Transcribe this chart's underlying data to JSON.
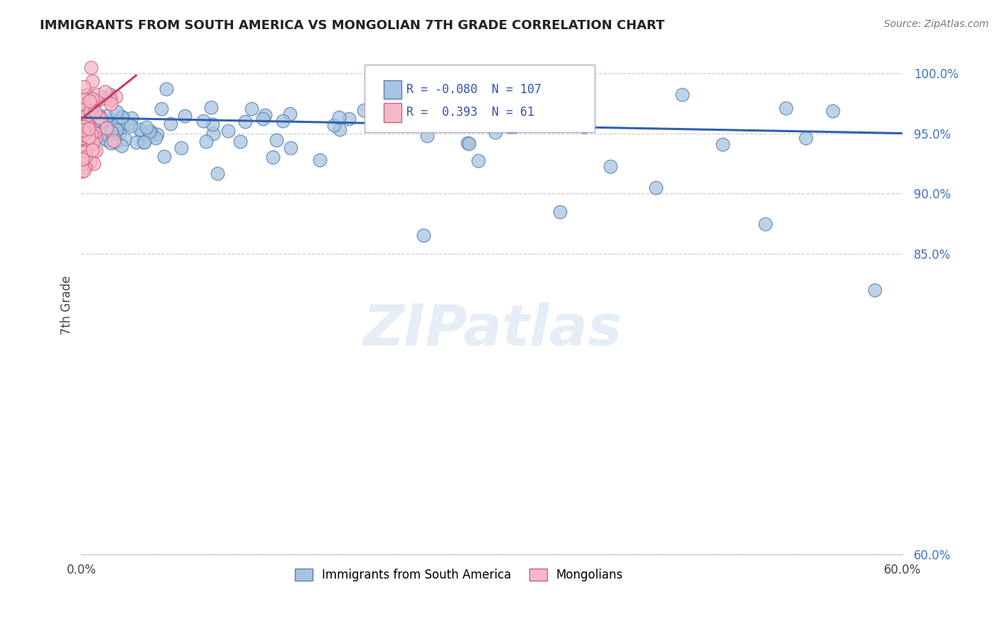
{
  "title": "IMMIGRANTS FROM SOUTH AMERICA VS MONGOLIAN 7TH GRADE CORRELATION CHART",
  "source": "Source: ZipAtlas.com",
  "ylabel": "7th Grade",
  "R_blue": -0.08,
  "N_blue": 107,
  "R_pink": 0.393,
  "N_pink": 61,
  "blue_color": "#a8c4e0",
  "pink_color": "#f5b8c8",
  "blue_edge_color": "#5580b0",
  "pink_edge_color": "#d06080",
  "blue_line_color": "#3060b0",
  "pink_line_color": "#c04060",
  "legend_blue_label": "Immigrants from South America",
  "legend_pink_label": "Mongolians",
  "watermark": "ZIPatlas",
  "xlim": [
    0,
    60
  ],
  "ylim": [
    60,
    101.5
  ],
  "y_ticks": [
    60.0,
    85.0,
    90.0,
    95.0,
    100.0
  ],
  "y_tick_labels": [
    "60.0%",
    "85.0%",
    "90.0%",
    "95.0%",
    "100.0%"
  ],
  "blue_trend_x": [
    0,
    60
  ],
  "blue_trend_y": [
    96.3,
    95.0
  ],
  "pink_trend_x": [
    0,
    4.0
  ],
  "pink_trend_y": [
    96.2,
    99.8
  ]
}
